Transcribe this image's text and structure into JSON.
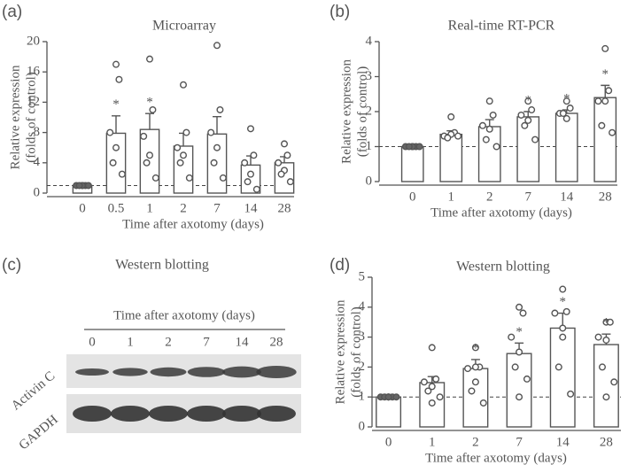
{
  "chart_data": [
    {
      "type": "bar",
      "panel": "(a)",
      "title": "Microarray",
      "ylabel": [
        "Relative expression",
        "(folds of control)"
      ],
      "xlabel": "Time after  axotomy (days)",
      "categories": [
        "0",
        "0.5",
        "1",
        "2",
        "7",
        "14",
        "28"
      ],
      "values": [
        1,
        7.9,
        8.4,
        6.2,
        7.8,
        3.7,
        4.0
      ],
      "errors": [
        0.2,
        2.3,
        2.1,
        1.7,
        2.3,
        1.2,
        0.8
      ],
      "points": [
        [
          1,
          1,
          1,
          1,
          1,
          1
        ],
        [
          17,
          15,
          8,
          6,
          4,
          2.5
        ],
        [
          17.7,
          11,
          7.5,
          5,
          4,
          2
        ],
        [
          14.3,
          8,
          6,
          5,
          4,
          2
        ],
        [
          19.5,
          11,
          8,
          6,
          4,
          2
        ],
        [
          8.5,
          5,
          4,
          2.5,
          1.5,
          0.5
        ],
        [
          6.5,
          5,
          4,
          3,
          2.5,
          1.5
        ]
      ],
      "significance": [
        null,
        "*",
        "*",
        null,
        null,
        null,
        null
      ],
      "reference_line": 1,
      "ylim": [
        0,
        20
      ],
      "yticks": [
        0,
        4,
        8,
        12,
        16,
        20
      ],
      "color": "#555555"
    },
    {
      "type": "bar",
      "panel": "(b)",
      "title": "Real-time RT-PCR",
      "ylabel": [
        "Relative expression",
        "(folds of control)"
      ],
      "xlabel": "Time after  axotomy (days)",
      "categories": [
        "0",
        "1",
        "2",
        "7",
        "14",
        "28"
      ],
      "values": [
        1,
        1.35,
        1.57,
        1.85,
        1.95,
        2.4
      ],
      "errors": [
        0.02,
        0.1,
        0.2,
        0.15,
        0.1,
        0.35
      ],
      "points": [
        [
          1,
          1,
          1,
          1,
          1,
          1
        ],
        [
          1.85,
          1.4,
          1.3,
          1.35,
          1.25,
          1.3
        ],
        [
          2.3,
          1.9,
          1.6,
          1.5,
          1.2,
          1.0
        ],
        [
          2.3,
          2.05,
          1.9,
          1.75,
          1.6,
          1.2
        ],
        [
          2.3,
          2.1,
          1.95,
          1.8,
          1.95
        ],
        [
          3.8,
          2.6,
          2.3,
          2.3,
          1.6,
          1.4
        ]
      ],
      "significance": [
        null,
        null,
        null,
        "*",
        "*",
        "*"
      ],
      "reference_line": 1,
      "ylim": [
        0,
        4
      ],
      "yticks": [
        0,
        1,
        2,
        3,
        4
      ],
      "color": "#555555"
    },
    {
      "type": "bar",
      "panel": "(d)",
      "title": "Western blotting",
      "ylabel": [
        "Relative expression",
        "(folds of control)"
      ],
      "xlabel": "Time after  axotomy (days)",
      "categories": [
        "0",
        "1",
        "2",
        "7",
        "14",
        "28"
      ],
      "values": [
        1,
        1.48,
        1.95,
        2.45,
        3.3,
        2.75
      ],
      "errors": [
        0.02,
        0.2,
        0.3,
        0.35,
        0.5,
        0.35
      ],
      "points": [
        [
          1,
          1,
          1,
          1,
          1,
          1,
          1
        ],
        [
          2.65,
          1.6,
          1.5,
          1.35,
          1.2,
          1.0,
          0.8
        ],
        [
          2.65,
          2.0,
          1.95,
          1.5,
          1.2,
          0.8,
          2.0
        ],
        [
          4.0,
          3.8,
          3.0,
          2.5,
          2.0,
          1.6,
          1.0
        ],
        [
          4.6,
          3.85,
          3.8,
          3.3,
          2.0,
          1.1,
          3.0
        ],
        [
          3.5,
          3.5,
          3.0,
          2.9,
          2.0,
          1.5,
          1.0
        ]
      ],
      "significance": [
        null,
        null,
        "*",
        "*",
        "*",
        "*"
      ],
      "reference_line": 1,
      "ylim": [
        0,
        5
      ],
      "yticks": [
        0,
        1,
        2,
        3,
        4,
        5
      ],
      "color": "#555555"
    }
  ],
  "blot": {
    "panel": "(c)",
    "title": "Western blotting",
    "header": "Time after  axotomy (days)",
    "lanes": [
      "0",
      "1",
      "2",
      "7",
      "14",
      "28"
    ],
    "rows": [
      "Activin C",
      "GAPDH"
    ]
  }
}
